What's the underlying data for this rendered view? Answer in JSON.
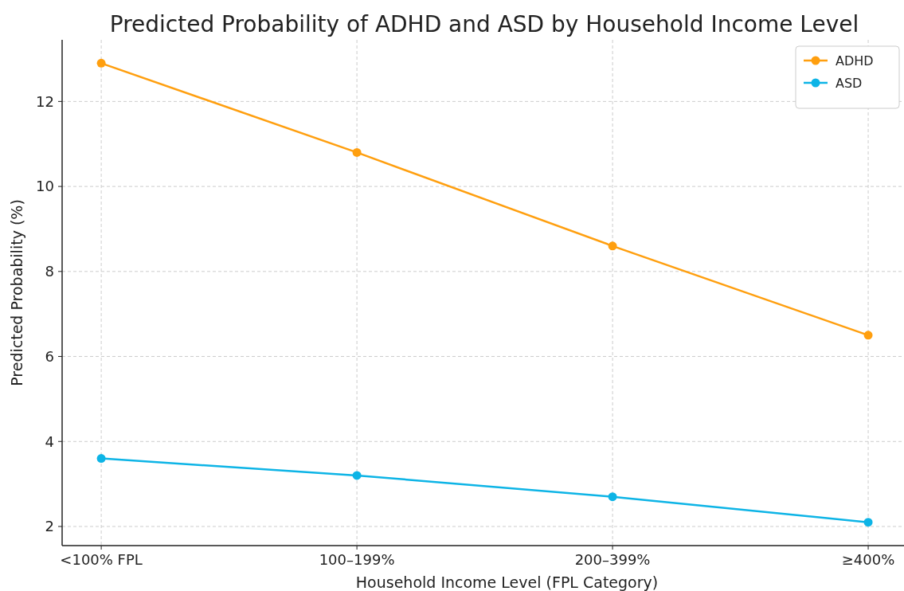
{
  "chart_data": {
    "type": "line",
    "title": "Predicted Probability of ADHD and ASD by Household Income Level",
    "xlabel": "Household Income Level (FPL Category)",
    "ylabel": "Predicted Probability (%)",
    "categories": [
      "<100% FPL",
      "100–199%",
      "200–399%",
      "≥400%"
    ],
    "series": [
      {
        "name": "ADHD",
        "color": "#ff9f0f",
        "values": [
          12.9,
          10.8,
          8.6,
          6.5
        ]
      },
      {
        "name": "ASD",
        "color": "#0db4e6",
        "values": [
          3.6,
          3.2,
          2.7,
          2.1
        ]
      }
    ],
    "ylim": [
      1.55,
      13.45
    ],
    "yticks": [
      2,
      4,
      6,
      8,
      10,
      12
    ],
    "grid": true,
    "legend": "top right",
    "marker": "circle",
    "line_style": "solid"
  }
}
